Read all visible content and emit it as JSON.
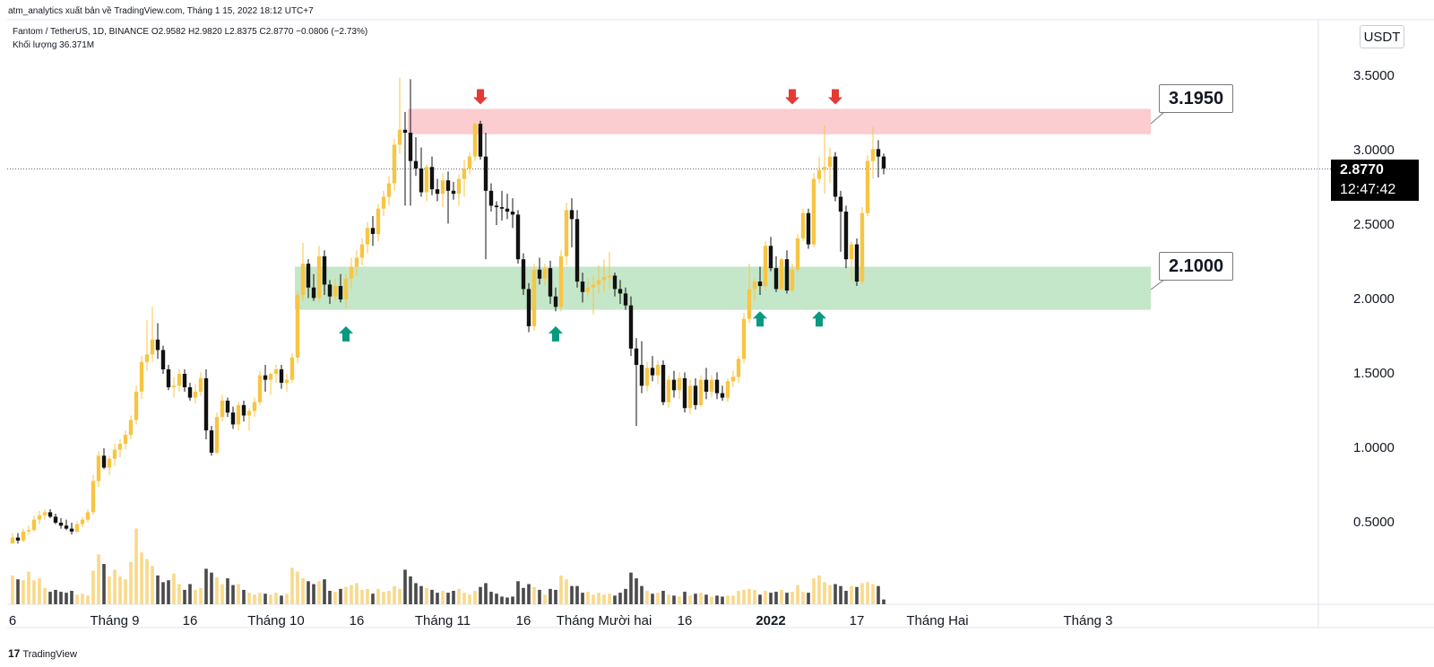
{
  "header": {
    "caption": "atm_analytics xuất bản về TradingView.com, Tháng 1 15, 2022 18:12 UTC+7",
    "legend_ohlc": "Fantom / TetherUS, 1D, BINANCE  O2.9582  H2.9820  L2.8375  C2.8770  −0.0806 (−2.73%)",
    "legend_volume": "Khối lượng  36.371M"
  },
  "toolbar": {
    "currency": "USDT"
  },
  "price_label": {
    "price": "2.8770",
    "countdown": "12:47:42"
  },
  "footer": {
    "brand": "TradingView",
    "brand_mark": "17"
  },
  "colors": {
    "up": "#f7c544",
    "down": "#111111",
    "volume_up": "#f9d98a",
    "volume_down": "#4a4a4a",
    "resistance_zone": "#fbcdd0",
    "support_zone": "#c5e7c9",
    "sell_arrow": "#e53935",
    "buy_arrow": "#089981"
  },
  "chart_data": {
    "type": "candlestick",
    "symbol": "Fantom / TetherUS",
    "interval": "1D",
    "exchange": "BINANCE",
    "y_ticks": [
      "3.5000",
      "3.0000",
      "2.5000",
      "2.0000",
      "1.5000",
      "1.0000",
      "0.5000"
    ],
    "y_tick_values": [
      3.5,
      3.0,
      2.5,
      2.0,
      1.5,
      1.0,
      0.5
    ],
    "ylim": [
      0.0,
      3.95
    ],
    "x_ticks": [
      {
        "label": "6",
        "index": 0
      },
      {
        "label": "Tháng 9",
        "index": 19
      },
      {
        "label": "16",
        "index": 33
      },
      {
        "label": "Tháng 10",
        "index": 49
      },
      {
        "label": "16",
        "index": 64
      },
      {
        "label": "Tháng 11",
        "index": 80
      },
      {
        "label": "16",
        "index": 95
      },
      {
        "label": "Tháng Mười hai",
        "index": 110
      },
      {
        "label": "16",
        "index": 125
      },
      {
        "label": "2022",
        "index": 141
      },
      {
        "label": "17",
        "index": 157
      },
      {
        "label": "Tháng Hai",
        "index": 172
      },
      {
        "label": "Tháng 3",
        "index": 200
      }
    ],
    "last_price": 2.877,
    "zones": [
      {
        "name": "resistance",
        "low": 3.11,
        "high": 3.28,
        "start_index": 74,
        "label": "3.1950"
      },
      {
        "name": "support",
        "low": 1.93,
        "high": 2.22,
        "start_index": 53,
        "label": "2.1000"
      }
    ],
    "arrows": [
      {
        "type": "sell",
        "index": 87,
        "price": 3.31
      },
      {
        "type": "sell",
        "index": 145,
        "price": 3.31
      },
      {
        "type": "sell",
        "index": 153,
        "price": 3.31
      },
      {
        "type": "buy",
        "index": 62,
        "price": 1.82
      },
      {
        "type": "buy",
        "index": 101,
        "price": 1.82
      },
      {
        "type": "buy",
        "index": 139,
        "price": 1.92
      },
      {
        "type": "buy",
        "index": 150,
        "price": 1.92
      }
    ],
    "candles": [
      [
        0.36,
        0.43,
        0.36,
        0.4,
        0.3
      ],
      [
        0.4,
        0.43,
        0.36,
        0.38,
        0.26
      ],
      [
        0.38,
        0.46,
        0.37,
        0.44,
        0.25
      ],
      [
        0.44,
        0.48,
        0.42,
        0.45,
        0.34
      ],
      [
        0.45,
        0.55,
        0.44,
        0.52,
        0.25
      ],
      [
        0.52,
        0.58,
        0.49,
        0.55,
        0.27
      ],
      [
        0.55,
        0.59,
        0.52,
        0.57,
        0.17
      ],
      [
        0.57,
        0.59,
        0.53,
        0.54,
        0.13
      ],
      [
        0.54,
        0.56,
        0.49,
        0.5,
        0.15
      ],
      [
        0.5,
        0.53,
        0.46,
        0.48,
        0.13
      ],
      [
        0.48,
        0.52,
        0.45,
        0.46,
        0.12
      ],
      [
        0.46,
        0.5,
        0.42,
        0.44,
        0.14
      ],
      [
        0.44,
        0.51,
        0.43,
        0.49,
        0.1
      ],
      [
        0.49,
        0.54,
        0.47,
        0.52,
        0.11
      ],
      [
        0.52,
        0.59,
        0.5,
        0.57,
        0.09
      ],
      [
        0.57,
        0.82,
        0.55,
        0.78,
        0.35
      ],
      [
        0.78,
        0.98,
        0.74,
        0.95,
        0.52
      ],
      [
        0.95,
        1.0,
        0.86,
        0.87,
        0.42
      ],
      [
        0.87,
        0.95,
        0.82,
        0.93,
        0.29
      ],
      [
        0.93,
        1.03,
        0.88,
        0.99,
        0.36
      ],
      [
        0.99,
        1.06,
        0.94,
        1.03,
        0.29
      ],
      [
        1.03,
        1.12,
        0.99,
        1.09,
        0.26
      ],
      [
        1.09,
        1.22,
        1.06,
        1.19,
        0.44
      ],
      [
        1.19,
        1.42,
        1.16,
        1.38,
        0.79
      ],
      [
        1.38,
        1.62,
        1.33,
        1.58,
        0.54
      ],
      [
        1.58,
        1.86,
        1.52,
        1.63,
        0.47
      ],
      [
        1.63,
        1.95,
        1.58,
        1.73,
        0.4
      ],
      [
        1.73,
        1.84,
        1.6,
        1.66,
        0.3
      ],
      [
        1.66,
        1.69,
        1.5,
        1.53,
        0.23
      ],
      [
        1.53,
        1.56,
        1.39,
        1.41,
        0.25
      ],
      [
        1.41,
        1.48,
        1.34,
        1.42,
        0.32
      ],
      [
        1.42,
        1.53,
        1.38,
        1.5,
        0.21
      ],
      [
        1.5,
        1.53,
        1.38,
        1.41,
        0.15
      ],
      [
        1.41,
        1.44,
        1.32,
        1.34,
        0.21
      ],
      [
        1.34,
        1.43,
        1.3,
        1.38,
        0.15
      ],
      [
        1.38,
        1.51,
        1.35,
        1.47,
        0.17
      ],
      [
        1.47,
        1.53,
        1.06,
        1.12,
        0.37
      ],
      [
        1.12,
        1.15,
        0.95,
        0.97,
        0.33
      ],
      [
        0.97,
        1.24,
        0.96,
        1.21,
        0.28
      ],
      [
        1.21,
        1.36,
        1.18,
        1.32,
        0.21
      ],
      [
        1.32,
        1.34,
        1.21,
        1.24,
        0.27
      ],
      [
        1.24,
        1.28,
        1.13,
        1.16,
        0.2
      ],
      [
        1.16,
        1.31,
        1.12,
        1.29,
        0.21
      ],
      [
        1.29,
        1.32,
        1.18,
        1.22,
        0.15
      ],
      [
        1.22,
        1.27,
        1.12,
        1.25,
        0.12
      ],
      [
        1.25,
        1.34,
        1.21,
        1.31,
        0.1
      ],
      [
        1.31,
        1.52,
        1.29,
        1.49,
        0.12
      ],
      [
        1.49,
        1.56,
        1.38,
        1.46,
        0.11
      ],
      [
        1.46,
        1.51,
        1.36,
        1.5,
        0.1
      ],
      [
        1.5,
        1.56,
        1.44,
        1.53,
        0.12
      ],
      [
        1.53,
        1.56,
        1.4,
        1.44,
        0.09
      ],
      [
        1.44,
        1.5,
        1.38,
        1.46,
        0.11
      ],
      [
        1.46,
        1.64,
        1.44,
        1.61,
        0.38
      ],
      [
        1.61,
        2.06,
        1.57,
        2.03,
        0.34
      ],
      [
        2.03,
        2.38,
        1.99,
        2.24,
        0.27
      ],
      [
        2.24,
        2.27,
        2.01,
        2.08,
        0.24
      ],
      [
        2.08,
        2.17,
        1.99,
        2.01,
        0.21
      ],
      [
        2.01,
        2.36,
        1.98,
        2.29,
        0.24
      ],
      [
        2.29,
        2.33,
        2.03,
        2.1,
        0.26
      ],
      [
        2.1,
        2.13,
        1.97,
        2.02,
        0.14
      ],
      [
        2.02,
        2.14,
        1.99,
        2.09,
        0.13
      ],
      [
        2.09,
        2.17,
        1.98,
        2.0,
        0.16
      ],
      [
        2.0,
        2.17,
        1.94,
        2.14,
        0.18
      ],
      [
        2.14,
        2.28,
        2.07,
        2.22,
        0.2
      ],
      [
        2.22,
        2.33,
        2.16,
        2.28,
        0.22
      ],
      [
        2.28,
        2.41,
        2.23,
        2.37,
        0.15
      ],
      [
        2.37,
        2.52,
        2.31,
        2.48,
        0.16
      ],
      [
        2.48,
        2.56,
        2.36,
        2.44,
        0.11
      ],
      [
        2.44,
        2.64,
        2.39,
        2.61,
        0.16
      ],
      [
        2.61,
        2.73,
        2.56,
        2.69,
        0.13
      ],
      [
        2.69,
        2.83,
        2.63,
        2.78,
        0.14
      ],
      [
        2.78,
        3.08,
        2.73,
        3.04,
        0.19
      ],
      [
        3.04,
        3.49,
        2.98,
        3.14,
        0.16
      ],
      [
        3.14,
        3.26,
        2.63,
        3.12,
        0.36
      ],
      [
        3.12,
        3.48,
        2.63,
        2.93,
        0.29
      ],
      [
        2.93,
        3.09,
        2.83,
        2.88,
        0.22
      ],
      [
        2.88,
        3.02,
        2.69,
        2.72,
        0.19
      ],
      [
        2.72,
        2.91,
        2.66,
        2.89,
        0.17
      ],
      [
        2.89,
        2.96,
        2.7,
        2.74,
        0.15
      ],
      [
        2.74,
        2.81,
        2.66,
        2.71,
        0.12
      ],
      [
        2.71,
        2.85,
        2.62,
        2.8,
        0.14
      ],
      [
        2.8,
        2.86,
        2.51,
        2.73,
        0.12
      ],
      [
        2.73,
        2.79,
        2.67,
        2.71,
        0.14
      ],
      [
        2.71,
        2.84,
        2.63,
        2.81,
        0.16
      ],
      [
        2.81,
        2.94,
        2.69,
        2.88,
        0.12
      ],
      [
        2.88,
        2.99,
        2.84,
        2.96,
        0.1
      ],
      [
        2.96,
        3.19,
        2.93,
        3.18,
        0.14
      ],
      [
        3.18,
        3.2,
        2.94,
        2.96,
        0.18
      ],
      [
        2.96,
        3.12,
        2.27,
        2.73,
        0.22
      ],
      [
        2.73,
        2.78,
        2.59,
        2.63,
        0.13
      ],
      [
        2.63,
        2.66,
        2.5,
        2.62,
        0.11
      ],
      [
        2.62,
        2.73,
        2.53,
        2.61,
        0.08
      ],
      [
        2.61,
        2.71,
        2.54,
        2.59,
        0.07
      ],
      [
        2.59,
        2.68,
        2.48,
        2.57,
        0.08
      ],
      [
        2.57,
        2.6,
        2.24,
        2.27,
        0.24
      ],
      [
        2.27,
        2.31,
        2.03,
        2.07,
        0.17
      ],
      [
        2.07,
        2.11,
        1.78,
        1.82,
        0.21
      ],
      [
        1.82,
        2.24,
        1.79,
        2.2,
        0.18
      ],
      [
        2.2,
        2.28,
        2.1,
        2.14,
        0.15
      ],
      [
        2.14,
        2.24,
        2.09,
        2.21,
        0.1
      ],
      [
        2.21,
        2.26,
        1.97,
        2.02,
        0.16
      ],
      [
        2.02,
        2.08,
        1.92,
        1.95,
        0.15
      ],
      [
        1.95,
        2.33,
        1.92,
        2.29,
        0.3
      ],
      [
        2.29,
        2.65,
        2.23,
        2.6,
        0.26
      ],
      [
        2.6,
        2.68,
        2.35,
        2.54,
        0.19
      ],
      [
        2.54,
        2.6,
        2.08,
        2.12,
        0.19
      ],
      [
        2.12,
        2.18,
        1.98,
        2.05,
        0.12
      ],
      [
        2.05,
        2.14,
        2.02,
        2.08,
        0.13
      ],
      [
        2.08,
        2.16,
        1.9,
        2.1,
        0.1
      ],
      [
        2.1,
        2.23,
        2.04,
        2.13,
        0.12
      ],
      [
        2.13,
        2.27,
        2.05,
        2.15,
        0.1
      ],
      [
        2.15,
        2.32,
        2.07,
        2.16,
        0.11
      ],
      [
        2.16,
        2.18,
        2.02,
        2.07,
        0.09
      ],
      [
        2.07,
        2.13,
        1.97,
        2.04,
        0.12
      ],
      [
        2.04,
        2.08,
        1.93,
        1.96,
        0.16
      ],
      [
        1.96,
        2.02,
        1.62,
        1.67,
        0.33
      ],
      [
        1.67,
        1.74,
        1.15,
        1.56,
        0.27
      ],
      [
        1.56,
        1.72,
        1.37,
        1.42,
        0.19
      ],
      [
        1.42,
        1.58,
        1.38,
        1.54,
        0.14
      ],
      [
        1.54,
        1.62,
        1.45,
        1.49,
        0.11
      ],
      [
        1.49,
        1.59,
        1.43,
        1.56,
        0.12
      ],
      [
        1.56,
        1.59,
        1.29,
        1.31,
        0.14
      ],
      [
        1.31,
        1.49,
        1.27,
        1.46,
        0.1
      ],
      [
        1.46,
        1.52,
        1.34,
        1.39,
        0.09
      ],
      [
        1.39,
        1.51,
        1.33,
        1.47,
        0.08
      ],
      [
        1.47,
        1.51,
        1.24,
        1.27,
        0.13
      ],
      [
        1.27,
        1.46,
        1.23,
        1.42,
        0.09
      ],
      [
        1.42,
        1.47,
        1.26,
        1.29,
        0.11
      ],
      [
        1.29,
        1.49,
        1.28,
        1.46,
        0.12
      ],
      [
        1.46,
        1.54,
        1.33,
        1.38,
        0.1
      ],
      [
        1.38,
        1.49,
        1.34,
        1.46,
        0.08
      ],
      [
        1.46,
        1.51,
        1.33,
        1.37,
        0.09
      ],
      [
        1.37,
        1.42,
        1.32,
        1.34,
        0.08
      ],
      [
        1.34,
        1.47,
        1.31,
        1.45,
        0.09
      ],
      [
        1.45,
        1.52,
        1.41,
        1.48,
        0.09
      ],
      [
        1.48,
        1.62,
        1.44,
        1.6,
        0.14
      ],
      [
        1.6,
        1.91,
        1.57,
        1.87,
        0.15
      ],
      [
        1.87,
        2.24,
        1.84,
        2.07,
        0.16
      ],
      [
        2.07,
        2.14,
        1.99,
        2.12,
        0.15
      ],
      [
        2.12,
        2.22,
        2.03,
        2.09,
        0.1
      ],
      [
        2.09,
        2.39,
        2.06,
        2.36,
        0.14
      ],
      [
        2.36,
        2.42,
        2.19,
        2.21,
        0.12
      ],
      [
        2.21,
        2.29,
        2.05,
        2.07,
        0.13
      ],
      [
        2.07,
        2.28,
        2.06,
        2.27,
        0.15
      ],
      [
        2.27,
        2.33,
        2.04,
        2.06,
        0.12
      ],
      [
        2.06,
        2.24,
        2.05,
        2.2,
        0.13
      ],
      [
        2.2,
        2.44,
        2.18,
        2.41,
        0.2
      ],
      [
        2.41,
        2.61,
        2.39,
        2.58,
        0.13
      ],
      [
        2.58,
        2.61,
        2.34,
        2.37,
        0.12
      ],
      [
        2.37,
        2.85,
        2.35,
        2.81,
        0.27
      ],
      [
        2.81,
        2.96,
        2.78,
        2.87,
        0.3
      ],
      [
        2.87,
        3.17,
        2.71,
        2.89,
        0.23
      ],
      [
        2.89,
        3.02,
        2.78,
        2.96,
        0.2
      ],
      [
        2.96,
        2.99,
        2.66,
        2.69,
        0.21
      ],
      [
        2.69,
        2.73,
        2.32,
        2.59,
        0.19
      ],
      [
        2.59,
        2.63,
        2.21,
        2.27,
        0.14
      ],
      [
        2.27,
        2.39,
        2.13,
        2.37,
        0.19
      ],
      [
        2.37,
        2.41,
        2.09,
        2.12,
        0.18
      ],
      [
        2.12,
        2.62,
        2.1,
        2.58,
        0.22
      ],
      [
        2.58,
        2.97,
        2.56,
        2.93,
        0.23
      ],
      [
        2.93,
        3.16,
        2.81,
        3.01,
        0.21
      ],
      [
        3.01,
        3.07,
        2.82,
        2.96,
        0.19
      ],
      [
        2.96,
        2.98,
        2.84,
        2.88,
        0.05
      ]
    ]
  }
}
